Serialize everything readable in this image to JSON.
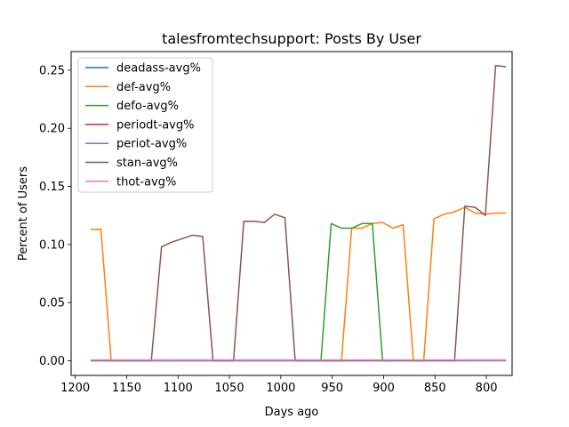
{
  "chart_data": {
    "type": "line",
    "title": "talesfromtechsupport: Posts By User",
    "xlabel": "Days ago",
    "ylabel": "Percent of Users",
    "x_inverted": true,
    "xlim": [
      1204,
      775
    ],
    "ylim": [
      -0.0127,
      0.266
    ],
    "xticks": [
      1200,
      1150,
      1100,
      1050,
      1000,
      950,
      900,
      850,
      800
    ],
    "yticks": [
      0.0,
      0.05,
      0.1,
      0.15,
      0.2,
      0.25
    ],
    "xtick_labels": [
      "1200",
      "1150",
      "1100",
      "1050",
      "1000",
      "950",
      "900",
      "850",
      "800"
    ],
    "ytick_labels": [
      "0.00",
      "0.05",
      "0.10",
      "0.15",
      "0.20",
      "0.25"
    ],
    "legend_position": "upper-left",
    "grid": false,
    "x": [
      1185,
      1175,
      1165,
      1155,
      1145,
      1135,
      1125,
      1115,
      1105,
      1095,
      1085,
      1075,
      1065,
      1055,
      1045,
      1035,
      1025,
      1015,
      1005,
      995,
      985,
      975,
      965,
      955,
      945,
      935,
      925,
      915,
      905,
      895,
      885,
      875,
      865,
      855,
      845,
      835,
      825,
      815,
      805,
      795,
      785,
      775
    ],
    "series": [
      {
        "name": "deadass-avg%",
        "color": "#1f77b4",
        "x": [
          1185,
          815
        ],
        "values": [
          0,
          0
        ]
      },
      {
        "name": "def-avg%",
        "color": "#ff7f0e",
        "x": [
          1185,
          1175,
          1165,
          941,
          931,
          921,
          911,
          901,
          891,
          881,
          871,
          861,
          851,
          841,
          831,
          821,
          811,
          801,
          791,
          781
        ],
        "values": [
          0.113,
          0.113,
          0,
          0,
          0.114,
          0.114,
          0.118,
          0.119,
          0.114,
          0.117,
          0,
          0,
          0.122,
          0.126,
          0.128,
          0.132,
          0.127,
          0.126,
          0.127,
          0.127
        ]
      },
      {
        "name": "defo-avg%",
        "color": "#2ca02c",
        "x": [
          961,
          951,
          941,
          931,
          921,
          911,
          901,
          891
        ],
        "values": [
          0,
          0.118,
          0.114,
          0.114,
          0.118,
          0.118,
          0,
          0
        ]
      },
      {
        "name": "periodt-avg%",
        "color": "#d62728",
        "x": [
          1185,
          781
        ],
        "values": [
          0,
          0
        ]
      },
      {
        "name": "periot-avg%",
        "color": "#9467bd",
        "x": [
          1185,
          781
        ],
        "values": [
          0,
          0
        ]
      },
      {
        "name": "stan-avg%",
        "color": "#8c564b",
        "x": [
          1185,
          1126,
          1116,
          1106,
          1096,
          1086,
          1076,
          1066,
          1046,
          1036,
          1026,
          1016,
          1006,
          996,
          986,
          831,
          821,
          811,
          801,
          791,
          781
        ],
        "values": [
          0,
          0,
          0.098,
          0.102,
          0.105,
          0.108,
          0.107,
          0,
          0,
          0.12,
          0.12,
          0.119,
          0.126,
          0.123,
          0,
          0,
          0.133,
          0.132,
          0.125,
          0.254,
          0.253
        ]
      },
      {
        "name": "thot-avg%",
        "color": "#e377c2",
        "x": [
          1185,
          781
        ],
        "values": [
          0.0005,
          0.0005
        ]
      }
    ]
  }
}
